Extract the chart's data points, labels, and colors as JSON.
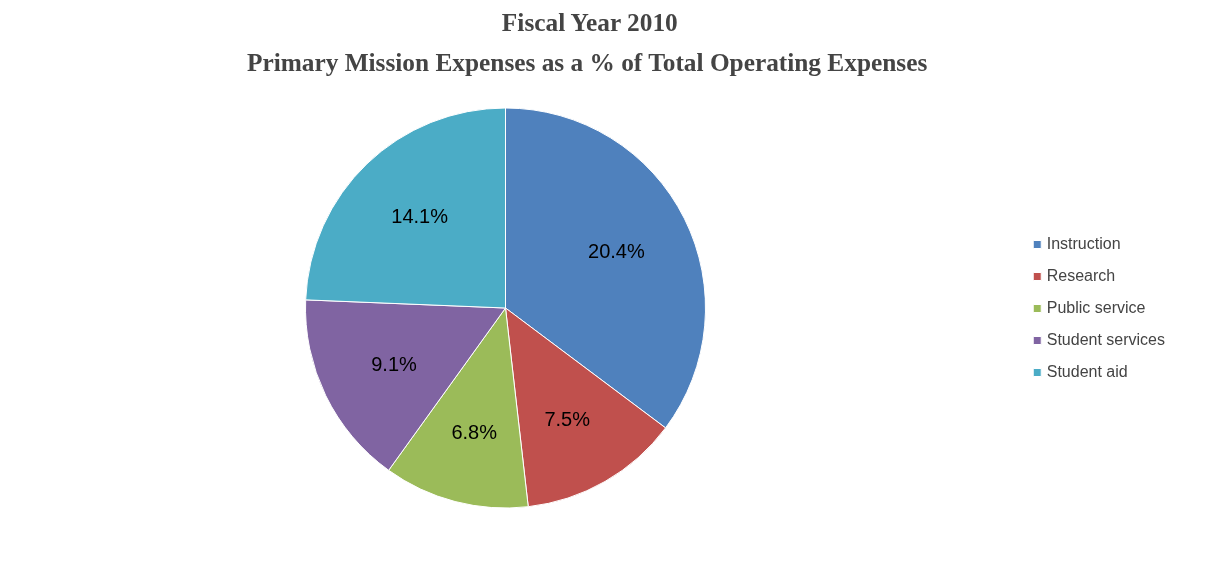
{
  "chart_data": {
    "type": "pie",
    "title": "Fiscal Year 2010",
    "subtitle": "Primary Mission Expenses as a % of  Total Operating Expenses",
    "categories": [
      "Instruction",
      "Research",
      "Public service",
      "Student services",
      "Student aid"
    ],
    "values": [
      20.4,
      7.5,
      6.8,
      9.1,
      14.1
    ],
    "value_labels": [
      "20.4%",
      "7.5%",
      "6.8%",
      "9.1%",
      "14.1%"
    ],
    "colors": [
      "#4f81bd",
      "#c0504d",
      "#9bbb59",
      "#8064a2",
      "#4bacc6"
    ],
    "legend": "right"
  }
}
